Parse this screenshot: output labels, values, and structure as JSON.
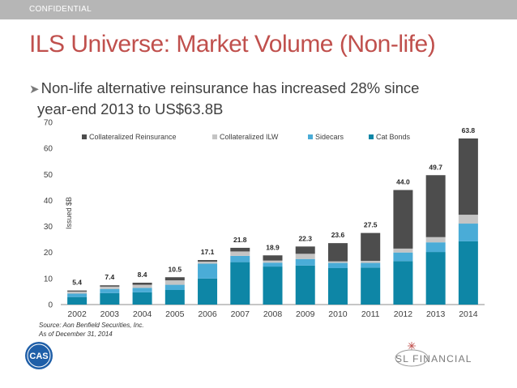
{
  "header": {
    "label": "CONFIDENTIAL"
  },
  "title": "ILS Universe: Market Volume (Non-life)",
  "bullet": {
    "line1": "Non-life alternative reinsurance has increased 28% since",
    "line2": "year-end 2013 to US$63.8B"
  },
  "source": {
    "line1": "Source: Aon Benfield Securities, Inc.",
    "line2": "As of December 31, 2014"
  },
  "logos": {
    "left": "CAS",
    "right": "SL FINANCIAL"
  },
  "colors": {
    "header_bar": "#b6b6b6",
    "title": "#c0504d",
    "collateralized_reinsurance": "#4d4d4d",
    "collateralized_ilw": "#c4c4c4",
    "sidecars": "#4aacd7",
    "cat_bonds": "#0e86a6"
  },
  "chart_data": {
    "type": "bar",
    "stacked": true,
    "categories": [
      "2002",
      "2003",
      "2004",
      "2005",
      "2006",
      "2007",
      "2008",
      "2009",
      "2010",
      "2011",
      "2012",
      "2013",
      "2014"
    ],
    "series": [
      {
        "name": "Cat Bonds",
        "color": "#0e86a6",
        "values": [
          2.9,
          4.4,
          4.7,
          5.6,
          10.0,
          16.3,
          14.6,
          15.0,
          14.0,
          14.2,
          16.7,
          20.2,
          24.3
        ]
      },
      {
        "name": "Sidecars",
        "color": "#4aacd7",
        "values": [
          1.3,
          1.6,
          1.7,
          2.0,
          5.7,
          2.4,
          1.5,
          2.5,
          2.0,
          1.8,
          3.3,
          3.7,
          6.8
        ]
      },
      {
        "name": "Collateralized ILW",
        "color": "#c4c4c4",
        "values": [
          0.8,
          0.9,
          1.2,
          1.7,
          0.8,
          1.7,
          0.8,
          2.0,
          0.6,
          0.8,
          1.5,
          2.0,
          3.4
        ]
      },
      {
        "name": "Collateralized Reinsurance",
        "color": "#4d4d4d",
        "values": [
          0.4,
          0.5,
          0.8,
          1.2,
          0.6,
          1.4,
          2.0,
          2.8,
          7.0,
          10.7,
          22.5,
          23.8,
          29.3
        ]
      }
    ],
    "totals": [
      "5.4",
      "7.4",
      "8.4",
      "10.5",
      "17.1",
      "21.8",
      "18.9",
      "22.3",
      "23.6",
      "27.5",
      "44.0",
      "49.7",
      "63.8"
    ],
    "legend": [
      "Collateralized Reinsurance",
      "Collateralized ILW",
      "Sidecars",
      "Cat Bonds"
    ],
    "legend_position": "top",
    "ylabel": "Issued $B",
    "ylim": [
      0,
      70
    ],
    "yticks": [
      "0",
      "10",
      "20",
      "30",
      "40",
      "50",
      "60",
      "70"
    ],
    "grid": false
  }
}
